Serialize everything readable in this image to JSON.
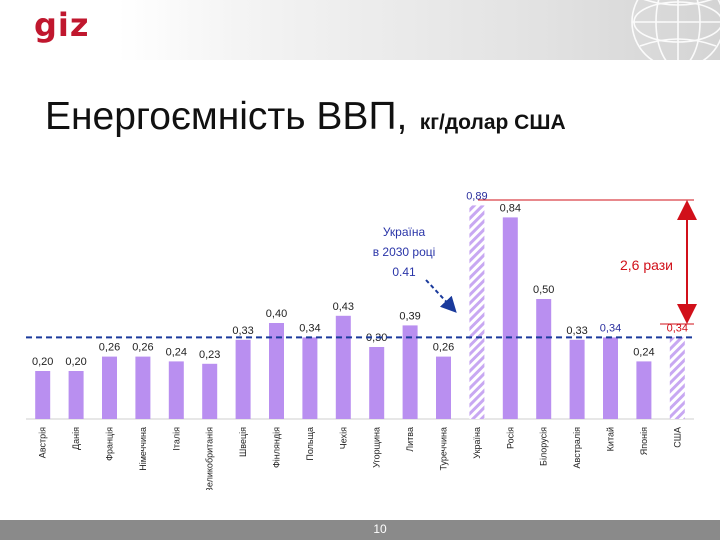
{
  "header": {
    "logo_text": "giz"
  },
  "slide": {
    "title": "Енергоємність ВВП,",
    "unit": "кг/долар США",
    "page_number": "10"
  },
  "chart_data": {
    "type": "bar",
    "categories": [
      "Австрія",
      "Данія",
      "Франція",
      "Німеччина",
      "Італія",
      "Великобританія",
      "Швеція",
      "Фінляндія",
      "Польща",
      "Чехія",
      "Угорщина",
      "Литва",
      "Туреччина",
      "Україна",
      "Росія",
      "Білорусія",
      "Австралія",
      "Китай",
      "Японія",
      "США"
    ],
    "values": [
      0.2,
      0.2,
      0.26,
      0.26,
      0.24,
      0.23,
      0.33,
      0.4,
      0.34,
      0.43,
      0.3,
      0.39,
      0.26,
      0.89,
      0.84,
      0.5,
      0.33,
      0.34,
      0.24,
      0.34
    ],
    "value_labels": [
      "0,20",
      "0,20",
      "0,26",
      "0,26",
      "0,24",
      "0,23",
      "0,33",
      "0,40",
      "0,34",
      "0,43",
      "0,30",
      "0,39",
      "0,26",
      "0,89",
      "0,84",
      "0,50",
      "0,33",
      "0,34",
      "0,24",
      "0,34"
    ],
    "hatched": [
      false,
      false,
      false,
      false,
      false,
      false,
      false,
      false,
      false,
      false,
      false,
      false,
      false,
      true,
      false,
      false,
      false,
      false,
      false,
      true
    ],
    "label_colors": [
      "#222222",
      "#222222",
      "#222222",
      "#222222",
      "#222222",
      "#222222",
      "#222222",
      "#222222",
      "#222222",
      "#222222",
      "#222222",
      "#222222",
      "#222222",
      "#2a2f9e",
      "#222222",
      "#222222",
      "#222222",
      "#2a2f9e",
      "#222222",
      "#d1101a"
    ],
    "ylim": [
      0,
      1.0
    ],
    "reference_line": {
      "value": 0.34,
      "color": "#1a3a9c",
      "style": "dashed"
    },
    "annotations": [
      {
        "id": "ukraine-2030",
        "lines": [
          "Україна",
          "в 2030 році",
          "0.41"
        ],
        "color": "#2a35a8"
      },
      {
        "id": "ratio",
        "text": "2,6 рази",
        "color": "#d1101a"
      }
    ],
    "colors": {
      "bar": "#b98ff0",
      "hatch": "#c8a8f2",
      "label": "#222222"
    },
    "xlabel": "",
    "ylabel": "",
    "grid": false
  }
}
